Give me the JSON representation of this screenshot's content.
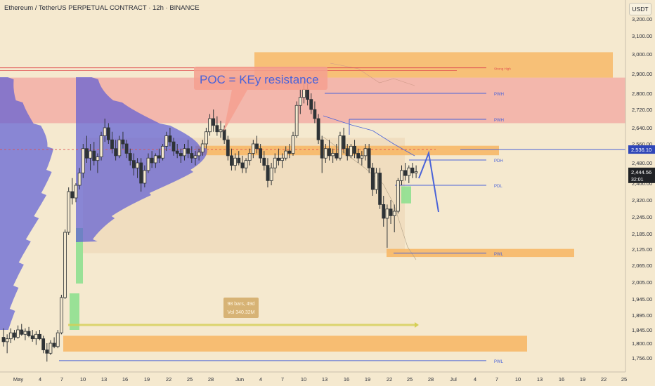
{
  "header": {
    "symbol": "Ethereum / TetherUS PERPETUAL CONTRACT",
    "interval": "12h",
    "exchange": "BINANCE",
    "title_sep": " · ",
    "currency": "USDT"
  },
  "colors": {
    "background": "#f5e9cf",
    "up_candle": "#2e3336",
    "down_candle": "#2e3336",
    "volume_profile": "#5b5bd6",
    "resistance_zone": "#f2a6a0",
    "orange_zone": "#f7b867",
    "green_zone": "#8fe08f",
    "level_line": "#4a63d8",
    "annotation_blue": "#4a63d8",
    "callout_fill": "#f4a08f",
    "measure_box": "#d4ad6a"
  },
  "annotations": {
    "callout": "POC  = KEy resistance",
    "measure_bars": "98 bars, 49d",
    "measure_vol": "Vol 340.32M"
  },
  "levels": [
    {
      "label": "Strong High",
      "price": 2930
    },
    {
      "label": "PWH",
      "price": 2800
    },
    {
      "label": "PWH",
      "price": 2677
    },
    {
      "label": "PDH",
      "price": 2492
    },
    {
      "label": "PDL",
      "price": 2390
    },
    {
      "label": "PWL",
      "price": 2110
    },
    {
      "label": "PWL",
      "price": 1748
    }
  ],
  "price_tags": {
    "level": "2,536.10",
    "last": "2,444.56",
    "countdown": "32:01"
  },
  "chart_data": {
    "type": "candlestick",
    "title": "Ethereum / TetherUS PERPETUAL CONTRACT · 12h · BINANCE",
    "xlabel": "",
    "ylabel": "USDT",
    "ylim": [
      1730,
      3250
    ],
    "x_ticks": [
      "May",
      "4",
      "7",
      "10",
      "13",
      "16",
      "19",
      "22",
      "25",
      "28",
      "Jun",
      "4",
      "7",
      "10",
      "13",
      "16",
      "19",
      "22",
      "25",
      "28",
      "Jul",
      "4",
      "7",
      "10",
      "13",
      "16",
      "19",
      "22",
      "25"
    ],
    "y_ticks": [
      1756,
      1800,
      1845,
      1895,
      1945,
      2005,
      2065,
      2125,
      2185,
      2245,
      2320,
      2400,
      2480,
      2560,
      2640,
      2720,
      2800,
      2900,
      3000,
      3100,
      3200
    ],
    "y_tick_labels": [
      "1,756.00",
      "1,800.00",
      "1,845.00",
      "1,895.00",
      "1,945.00",
      "2,005.00",
      "2,065.00",
      "2,125.00",
      "2,185.00",
      "2,245.00",
      "2,320.00",
      "2,400.00",
      "2,480.00",
      "2,560.00",
      "2,640.00",
      "2,720.00",
      "2,800.00",
      "2,900.00",
      "3,000.00",
      "3,100.00",
      "3,200.00"
    ],
    "candles": [
      {
        "day": 0,
        "o": 1820,
        "h": 1850,
        "l": 1790,
        "c": 1805
      },
      {
        "day": 0.5,
        "o": 1805,
        "h": 1830,
        "l": 1770,
        "c": 1815
      },
      {
        "day": 1,
        "o": 1815,
        "h": 1850,
        "l": 1800,
        "c": 1835
      },
      {
        "day": 1.5,
        "o": 1835,
        "h": 1845,
        "l": 1810,
        "c": 1820
      },
      {
        "day": 2,
        "o": 1820,
        "h": 1860,
        "l": 1815,
        "c": 1845
      },
      {
        "day": 2.5,
        "o": 1845,
        "h": 1865,
        "l": 1825,
        "c": 1830
      },
      {
        "day": 3,
        "o": 1830,
        "h": 1850,
        "l": 1810,
        "c": 1840
      },
      {
        "day": 3.5,
        "o": 1840,
        "h": 1855,
        "l": 1820,
        "c": 1825
      },
      {
        "day": 4,
        "o": 1825,
        "h": 1845,
        "l": 1805,
        "c": 1815
      },
      {
        "day": 4.5,
        "o": 1815,
        "h": 1840,
        "l": 1795,
        "c": 1830
      },
      {
        "day": 5,
        "o": 1830,
        "h": 1845,
        "l": 1810,
        "c": 1815
      },
      {
        "day": 5.5,
        "o": 1815,
        "h": 1825,
        "l": 1770,
        "c": 1780
      },
      {
        "day": 6,
        "o": 1780,
        "h": 1800,
        "l": 1745,
        "c": 1770
      },
      {
        "day": 6.5,
        "o": 1770,
        "h": 1810,
        "l": 1765,
        "c": 1800
      },
      {
        "day": 7,
        "o": 1800,
        "h": 1820,
        "l": 1785,
        "c": 1790
      },
      {
        "day": 7.5,
        "o": 1790,
        "h": 1845,
        "l": 1785,
        "c": 1835
      },
      {
        "day": 8,
        "o": 1835,
        "h": 1960,
        "l": 1830,
        "c": 1950
      },
      {
        "day": 8.5,
        "o": 1950,
        "h": 2200,
        "l": 1945,
        "c": 2190
      },
      {
        "day": 9,
        "o": 2190,
        "h": 2380,
        "l": 2180,
        "c": 2360
      },
      {
        "day": 9.5,
        "o": 2360,
        "h": 2420,
        "l": 2300,
        "c": 2330
      },
      {
        "day": 10,
        "o": 2330,
        "h": 2400,
        "l": 2310,
        "c": 2390
      },
      {
        "day": 10.5,
        "o": 2390,
        "h": 2460,
        "l": 2370,
        "c": 2440
      },
      {
        "day": 11,
        "o": 2440,
        "h": 2560,
        "l": 2420,
        "c": 2540
      },
      {
        "day": 11.5,
        "o": 2540,
        "h": 2600,
        "l": 2480,
        "c": 2500
      },
      {
        "day": 12,
        "o": 2500,
        "h": 2560,
        "l": 2450,
        "c": 2530
      },
      {
        "day": 12.5,
        "o": 2530,
        "h": 2570,
        "l": 2470,
        "c": 2490
      },
      {
        "day": 13,
        "o": 2490,
        "h": 2520,
        "l": 2440,
        "c": 2505
      },
      {
        "day": 13.5,
        "o": 2505,
        "h": 2620,
        "l": 2490,
        "c": 2600
      },
      {
        "day": 14,
        "o": 2600,
        "h": 2680,
        "l": 2570,
        "c": 2640
      },
      {
        "day": 14.5,
        "o": 2640,
        "h": 2660,
        "l": 2560,
        "c": 2580
      },
      {
        "day": 15,
        "o": 2580,
        "h": 2620,
        "l": 2520,
        "c": 2540
      },
      {
        "day": 15.5,
        "o": 2540,
        "h": 2580,
        "l": 2490,
        "c": 2510
      },
      {
        "day": 16,
        "o": 2510,
        "h": 2600,
        "l": 2500,
        "c": 2580
      },
      {
        "day": 16.5,
        "o": 2580,
        "h": 2620,
        "l": 2540,
        "c": 2560
      },
      {
        "day": 17,
        "o": 2560,
        "h": 2580,
        "l": 2500,
        "c": 2520
      },
      {
        "day": 17.5,
        "o": 2520,
        "h": 2540,
        "l": 2470,
        "c": 2490
      },
      {
        "day": 18,
        "o": 2490,
        "h": 2520,
        "l": 2430,
        "c": 2460
      },
      {
        "day": 18.5,
        "o": 2460,
        "h": 2500,
        "l": 2420,
        "c": 2480
      },
      {
        "day": 19,
        "o": 2480,
        "h": 2500,
        "l": 2360,
        "c": 2400
      },
      {
        "day": 19.5,
        "o": 2400,
        "h": 2470,
        "l": 2380,
        "c": 2450
      },
      {
        "day": 20,
        "o": 2450,
        "h": 2520,
        "l": 2440,
        "c": 2500
      },
      {
        "day": 20.5,
        "o": 2500,
        "h": 2530,
        "l": 2460,
        "c": 2480
      },
      {
        "day": 21,
        "o": 2480,
        "h": 2520,
        "l": 2460,
        "c": 2510
      },
      {
        "day": 21.5,
        "o": 2510,
        "h": 2540,
        "l": 2480,
        "c": 2500
      },
      {
        "day": 22,
        "o": 2500,
        "h": 2560,
        "l": 2490,
        "c": 2550
      },
      {
        "day": 22.5,
        "o": 2550,
        "h": 2620,
        "l": 2530,
        "c": 2600
      },
      {
        "day": 23,
        "o": 2600,
        "h": 2640,
        "l": 2550,
        "c": 2570
      },
      {
        "day": 23.5,
        "o": 2570,
        "h": 2590,
        "l": 2510,
        "c": 2530
      },
      {
        "day": 24,
        "o": 2530,
        "h": 2560,
        "l": 2500,
        "c": 2520
      },
      {
        "day": 24.5,
        "o": 2520,
        "h": 2540,
        "l": 2480,
        "c": 2510
      },
      {
        "day": 25,
        "o": 2510,
        "h": 2560,
        "l": 2490,
        "c": 2540
      },
      {
        "day": 25.5,
        "o": 2540,
        "h": 2580,
        "l": 2500,
        "c": 2520
      },
      {
        "day": 26,
        "o": 2520,
        "h": 2550,
        "l": 2480,
        "c": 2500
      },
      {
        "day": 26.5,
        "o": 2500,
        "h": 2530,
        "l": 2470,
        "c": 2510
      },
      {
        "day": 27,
        "o": 2510,
        "h": 2540,
        "l": 2490,
        "c": 2525
      },
      {
        "day": 27.5,
        "o": 2525,
        "h": 2580,
        "l": 2510,
        "c": 2560
      },
      {
        "day": 28,
        "o": 2560,
        "h": 2640,
        "l": 2540,
        "c": 2620
      },
      {
        "day": 28.5,
        "o": 2620,
        "h": 2700,
        "l": 2600,
        "c": 2680
      },
      {
        "day": 29,
        "o": 2680,
        "h": 2720,
        "l": 2620,
        "c": 2650
      },
      {
        "day": 29.5,
        "o": 2650,
        "h": 2690,
        "l": 2600,
        "c": 2620
      },
      {
        "day": 30,
        "o": 2620,
        "h": 2670,
        "l": 2590,
        "c": 2630
      },
      {
        "day": 30.5,
        "o": 2630,
        "h": 2650,
        "l": 2560,
        "c": 2580
      },
      {
        "day": 31,
        "o": 2580,
        "h": 2600,
        "l": 2490,
        "c": 2510
      },
      {
        "day": 31.5,
        "o": 2510,
        "h": 2540,
        "l": 2450,
        "c": 2470
      },
      {
        "day": 32,
        "o": 2470,
        "h": 2520,
        "l": 2450,
        "c": 2500
      },
      {
        "day": 32.5,
        "o": 2500,
        "h": 2530,
        "l": 2470,
        "c": 2480
      },
      {
        "day": 33,
        "o": 2480,
        "h": 2510,
        "l": 2440,
        "c": 2460
      },
      {
        "day": 33.5,
        "o": 2460,
        "h": 2500,
        "l": 2440,
        "c": 2490
      },
      {
        "day": 34,
        "o": 2490,
        "h": 2540,
        "l": 2470,
        "c": 2520
      },
      {
        "day": 34.5,
        "o": 2520,
        "h": 2580,
        "l": 2500,
        "c": 2560
      },
      {
        "day": 35,
        "o": 2560,
        "h": 2600,
        "l": 2520,
        "c": 2540
      },
      {
        "day": 35.5,
        "o": 2540,
        "h": 2560,
        "l": 2480,
        "c": 2500
      },
      {
        "day": 36,
        "o": 2500,
        "h": 2530,
        "l": 2450,
        "c": 2470
      },
      {
        "day": 36.5,
        "o": 2470,
        "h": 2500,
        "l": 2380,
        "c": 2410
      },
      {
        "day": 37,
        "o": 2410,
        "h": 2480,
        "l": 2390,
        "c": 2460
      },
      {
        "day": 37.5,
        "o": 2460,
        "h": 2520,
        "l": 2440,
        "c": 2500
      },
      {
        "day": 38,
        "o": 2500,
        "h": 2540,
        "l": 2470,
        "c": 2490
      },
      {
        "day": 38.5,
        "o": 2490,
        "h": 2520,
        "l": 2460,
        "c": 2500
      },
      {
        "day": 39,
        "o": 2500,
        "h": 2550,
        "l": 2490,
        "c": 2530
      },
      {
        "day": 39.5,
        "o": 2530,
        "h": 2560,
        "l": 2500,
        "c": 2520
      },
      {
        "day": 40,
        "o": 2520,
        "h": 2620,
        "l": 2510,
        "c": 2600
      },
      {
        "day": 40.5,
        "o": 2600,
        "h": 2760,
        "l": 2590,
        "c": 2740
      },
      {
        "day": 41,
        "o": 2740,
        "h": 2820,
        "l": 2700,
        "c": 2780
      },
      {
        "day": 41.5,
        "o": 2780,
        "h": 2860,
        "l": 2750,
        "c": 2820
      },
      {
        "day": 42,
        "o": 2820,
        "h": 2850,
        "l": 2740,
        "c": 2770
      },
      {
        "day": 42.5,
        "o": 2770,
        "h": 2800,
        "l": 2700,
        "c": 2720
      },
      {
        "day": 43,
        "o": 2720,
        "h": 2760,
        "l": 2660,
        "c": 2680
      },
      {
        "day": 43.5,
        "o": 2680,
        "h": 2700,
        "l": 2560,
        "c": 2580
      },
      {
        "day": 44,
        "o": 2580,
        "h": 2600,
        "l": 2440,
        "c": 2500
      },
      {
        "day": 44.5,
        "o": 2500,
        "h": 2560,
        "l": 2480,
        "c": 2540
      },
      {
        "day": 45,
        "o": 2540,
        "h": 2580,
        "l": 2490,
        "c": 2510
      },
      {
        "day": 45.5,
        "o": 2510,
        "h": 2540,
        "l": 2480,
        "c": 2520
      },
      {
        "day": 46,
        "o": 2520,
        "h": 2560,
        "l": 2490,
        "c": 2500
      },
      {
        "day": 46.5,
        "o": 2500,
        "h": 2620,
        "l": 2490,
        "c": 2600
      },
      {
        "day": 47,
        "o": 2600,
        "h": 2640,
        "l": 2520,
        "c": 2540
      },
      {
        "day": 47.5,
        "o": 2540,
        "h": 2560,
        "l": 2490,
        "c": 2510
      },
      {
        "day": 48,
        "o": 2510,
        "h": 2560,
        "l": 2500,
        "c": 2550
      },
      {
        "day": 48.5,
        "o": 2550,
        "h": 2580,
        "l": 2500,
        "c": 2520
      },
      {
        "day": 49,
        "o": 2520,
        "h": 2540,
        "l": 2480,
        "c": 2500
      },
      {
        "day": 49.5,
        "o": 2500,
        "h": 2530,
        "l": 2470,
        "c": 2510
      },
      {
        "day": 50,
        "o": 2510,
        "h": 2560,
        "l": 2490,
        "c": 2540
      },
      {
        "day": 50.5,
        "o": 2540,
        "h": 2560,
        "l": 2440,
        "c": 2460
      },
      {
        "day": 51,
        "o": 2460,
        "h": 2480,
        "l": 2340,
        "c": 2370
      },
      {
        "day": 51.5,
        "o": 2370,
        "h": 2460,
        "l": 2350,
        "c": 2440
      },
      {
        "day": 52,
        "o": 2440,
        "h": 2460,
        "l": 2280,
        "c": 2300
      },
      {
        "day": 52.5,
        "o": 2300,
        "h": 2340,
        "l": 2210,
        "c": 2240
      },
      {
        "day": 53,
        "o": 2240,
        "h": 2300,
        "l": 2130,
        "c": 2280
      },
      {
        "day": 53.5,
        "o": 2280,
        "h": 2320,
        "l": 2220,
        "c": 2250
      },
      {
        "day": 54,
        "o": 2250,
        "h": 2300,
        "l": 2190,
        "c": 2270
      },
      {
        "day": 54.5,
        "o": 2270,
        "h": 2420,
        "l": 2260,
        "c": 2410
      },
      {
        "day": 55,
        "o": 2410,
        "h": 2470,
        "l": 2390,
        "c": 2450
      },
      {
        "day": 55.5,
        "o": 2450,
        "h": 2480,
        "l": 2410,
        "c": 2430
      },
      {
        "day": 56,
        "o": 2430,
        "h": 2470,
        "l": 2400,
        "c": 2460
      },
      {
        "day": 56.5,
        "o": 2460,
        "h": 2480,
        "l": 2420,
        "c": 2440
      },
      {
        "day": 57,
        "o": 2440,
        "h": 2470,
        "l": 2420,
        "c": 2445
      }
    ]
  }
}
